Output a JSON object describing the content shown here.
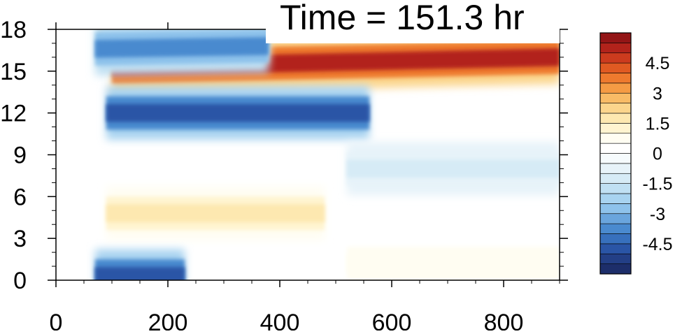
{
  "chart_data": {
    "type": "heatmap",
    "title": "Time = 151.3 hr",
    "xlabel": "",
    "ylabel": "",
    "xlim": [
      0,
      900
    ],
    "ylim": [
      0,
      18
    ],
    "x_ticks": [
      "0",
      "200",
      "400",
      "600",
      "800"
    ],
    "y_ticks": [
      "0",
      "3",
      "6",
      "9",
      "12",
      "15",
      "18"
    ],
    "colorbar": {
      "min": -6,
      "max": 6,
      "levels": [
        -6,
        -5.5,
        -5,
        -4.5,
        -4,
        -3.5,
        -3,
        -2.5,
        -2,
        -1.5,
        -1,
        -0.5,
        0,
        0.5,
        1,
        1.5,
        2,
        2.5,
        3,
        3.5,
        4,
        4.5,
        5,
        5.5,
        6
      ],
      "labels": [
        "4.5",
        "3",
        "1.5",
        "0",
        "-1.5",
        "-3",
        "-4.5"
      ],
      "colors": [
        "#1d2e6a",
        "#233f86",
        "#2a55a6",
        "#3770bd",
        "#4a8acf",
        "#6aa5dd",
        "#8ec2eb",
        "#a8d3f0",
        "#c0e0f3",
        "#d6ebf6",
        "#e7f3f9",
        "#f6fbfd",
        "#ffffff",
        "#fffdf2",
        "#fff4d0",
        "#fde8b0",
        "#fbd58c",
        "#f8bb66",
        "#f59b44",
        "#ee7a2e",
        "#e05a22",
        "#cc3b1e",
        "#b2231b",
        "#931516"
      ]
    },
    "features": [
      {
        "x": [
          100,
          900
        ],
        "y_center": [
          15.3,
          16.0
        ],
        "value": 5.2
      },
      {
        "x": [
          80,
          380
        ],
        "y_center": [
          17.4,
          17.6
        ],
        "value": 2.4
      },
      {
        "x": [
          70,
          380
        ],
        "y_center": [
          16.6,
          16.8
        ],
        "value": -3.8
      },
      {
        "x": [
          90,
          560
        ],
        "y_center": [
          12.0,
          12.0
        ],
        "value": -5.0
      },
      {
        "x": [
          90,
          480
        ],
        "y_center": [
          4.8,
          4.8
        ],
        "value": 1.5
      },
      {
        "x": [
          520,
          900
        ],
        "y_center": [
          1.2,
          1.2
        ],
        "value": 0.8
      },
      {
        "x": [
          70,
          230
        ],
        "y_center": [
          0.3,
          0.3
        ],
        "value": -5.0
      },
      {
        "x": [
          520,
          900
        ],
        "y_center": [
          8.0,
          8.0
        ],
        "value": -1.2
      }
    ]
  }
}
